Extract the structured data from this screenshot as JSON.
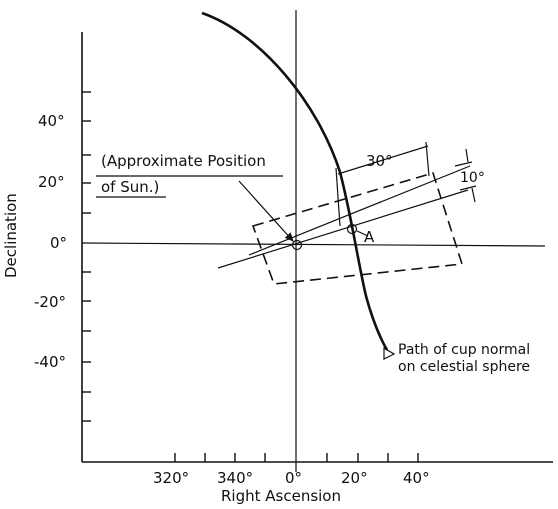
{
  "diagram": {
    "y_axis_label": "Declination",
    "x_axis_label": "Right Ascension",
    "y_ticks": [
      "40°",
      "20°",
      "0°",
      "-20°",
      "-40°"
    ],
    "x_ticks": [
      "320°",
      "340°",
      "0°",
      "20°",
      "40°"
    ],
    "sun_label_line1": "(Approximate Position",
    "sun_label_line2": "of Sun.)",
    "width_label": "30°",
    "height_label": "10°",
    "point_label": "A",
    "path_label_line1": "Path of cup normal",
    "path_label_line2": "on celestial sphere"
  }
}
